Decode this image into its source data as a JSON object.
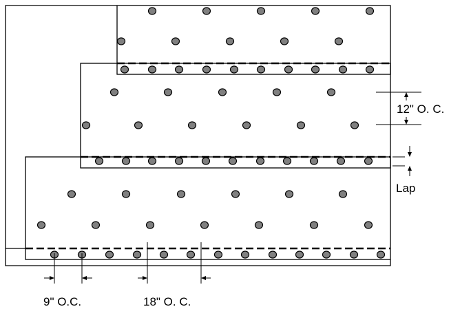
{
  "labels": {
    "vertical_spacing": "12\" O. C.",
    "lap": "Lap",
    "edge_spacing": "9\" O.C.",
    "field_spacing": "18\" O. C."
  },
  "colors": {
    "line": "#000000",
    "fastener_fill": "#808080",
    "fastener_stroke": "#000000",
    "background": "#ffffff"
  }
}
